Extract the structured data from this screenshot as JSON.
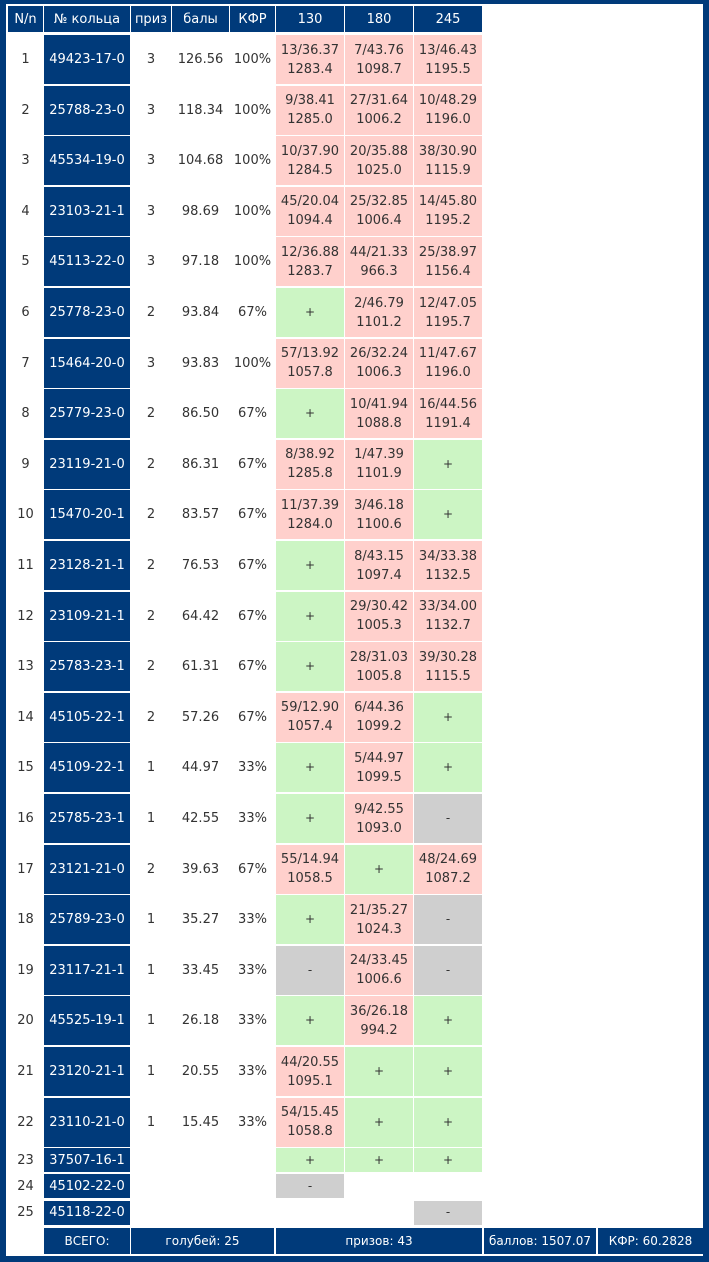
{
  "headers": {
    "n": "N/n",
    "ring": "№ кольца",
    "prize": "приз",
    "points": "балы",
    "kfr": "КФР",
    "d1": "130",
    "d2": "180",
    "d3": "245"
  },
  "rows": [
    {
      "n": "1",
      "ring": "49423-17-0",
      "prize": "3",
      "points": "126.56",
      "kfr": "100%",
      "results": [
        {
          "s": "r",
          "l1": "13/36.37",
          "l2": "1283.4"
        },
        {
          "s": "r",
          "l1": "7/43.76",
          "l2": "1098.7"
        },
        {
          "s": "r",
          "l1": "13/46.43",
          "l2": "1195.5"
        }
      ]
    },
    {
      "n": "2",
      "ring": "25788-23-0",
      "prize": "3",
      "points": "118.34",
      "kfr": "100%",
      "results": [
        {
          "s": "r",
          "l1": "9/38.41",
          "l2": "1285.0"
        },
        {
          "s": "r",
          "l1": "27/31.64",
          "l2": "1006.2"
        },
        {
          "s": "r",
          "l1": "10/48.29",
          "l2": "1196.0"
        }
      ]
    },
    {
      "n": "3",
      "ring": "45534-19-0",
      "prize": "3",
      "points": "104.68",
      "kfr": "100%",
      "results": [
        {
          "s": "r",
          "l1": "10/37.90",
          "l2": "1284.5"
        },
        {
          "s": "r",
          "l1": "20/35.88",
          "l2": "1025.0"
        },
        {
          "s": "r",
          "l1": "38/30.90",
          "l2": "1115.9"
        }
      ]
    },
    {
      "n": "4",
      "ring": "23103-21-1",
      "prize": "3",
      "points": "98.69",
      "kfr": "100%",
      "results": [
        {
          "s": "r",
          "l1": "45/20.04",
          "l2": "1094.4"
        },
        {
          "s": "r",
          "l1": "25/32.85",
          "l2": "1006.4"
        },
        {
          "s": "r",
          "l1": "14/45.80",
          "l2": "1195.2"
        }
      ]
    },
    {
      "n": "5",
      "ring": "45113-22-0",
      "prize": "3",
      "points": "97.18",
      "kfr": "100%",
      "results": [
        {
          "s": "r",
          "l1": "12/36.88",
          "l2": "1283.7"
        },
        {
          "s": "r",
          "l1": "44/21.33",
          "l2": "966.3"
        },
        {
          "s": "r",
          "l1": "25/38.97",
          "l2": "1156.4"
        }
      ]
    },
    {
      "n": "6",
      "ring": "25778-23-0",
      "prize": "2",
      "points": "93.84",
      "kfr": "67%",
      "results": [
        {
          "s": "g",
          "l1": "+",
          "l2": ""
        },
        {
          "s": "r",
          "l1": "2/46.79",
          "l2": "1101.2"
        },
        {
          "s": "r",
          "l1": "12/47.05",
          "l2": "1195.7"
        }
      ]
    },
    {
      "n": "7",
      "ring": "15464-20-0",
      "prize": "3",
      "points": "93.83",
      "kfr": "100%",
      "results": [
        {
          "s": "r",
          "l1": "57/13.92",
          "l2": "1057.8"
        },
        {
          "s": "r",
          "l1": "26/32.24",
          "l2": "1006.3"
        },
        {
          "s": "r",
          "l1": "11/47.67",
          "l2": "1196.0"
        }
      ]
    },
    {
      "n": "8",
      "ring": "25779-23-0",
      "prize": "2",
      "points": "86.50",
      "kfr": "67%",
      "results": [
        {
          "s": "g",
          "l1": "+",
          "l2": ""
        },
        {
          "s": "r",
          "l1": "10/41.94",
          "l2": "1088.8"
        },
        {
          "s": "r",
          "l1": "16/44.56",
          "l2": "1191.4"
        }
      ]
    },
    {
      "n": "9",
      "ring": "23119-21-0",
      "prize": "2",
      "points": "86.31",
      "kfr": "67%",
      "results": [
        {
          "s": "r",
          "l1": "8/38.92",
          "l2": "1285.8"
        },
        {
          "s": "r",
          "l1": "1/47.39",
          "l2": "1101.9"
        },
        {
          "s": "g",
          "l1": "+",
          "l2": ""
        }
      ]
    },
    {
      "n": "10",
      "ring": "15470-20-1",
      "prize": "2",
      "points": "83.57",
      "kfr": "67%",
      "results": [
        {
          "s": "r",
          "l1": "11/37.39",
          "l2": "1284.0"
        },
        {
          "s": "r",
          "l1": "3/46.18",
          "l2": "1100.6"
        },
        {
          "s": "g",
          "l1": "+",
          "l2": ""
        }
      ]
    },
    {
      "n": "11",
      "ring": "23128-21-1",
      "prize": "2",
      "points": "76.53",
      "kfr": "67%",
      "results": [
        {
          "s": "g",
          "l1": "+",
          "l2": ""
        },
        {
          "s": "r",
          "l1": "8/43.15",
          "l2": "1097.4"
        },
        {
          "s": "r",
          "l1": "34/33.38",
          "l2": "1132.5"
        }
      ]
    },
    {
      "n": "12",
      "ring": "23109-21-1",
      "prize": "2",
      "points": "64.42",
      "kfr": "67%",
      "results": [
        {
          "s": "g",
          "l1": "+",
          "l2": ""
        },
        {
          "s": "r",
          "l1": "29/30.42",
          "l2": "1005.3"
        },
        {
          "s": "r",
          "l1": "33/34.00",
          "l2": "1132.7"
        }
      ]
    },
    {
      "n": "13",
      "ring": "25783-23-1",
      "prize": "2",
      "points": "61.31",
      "kfr": "67%",
      "results": [
        {
          "s": "g",
          "l1": "+",
          "l2": ""
        },
        {
          "s": "r",
          "l1": "28/31.03",
          "l2": "1005.8"
        },
        {
          "s": "r",
          "l1": "39/30.28",
          "l2": "1115.5"
        }
      ]
    },
    {
      "n": "14",
      "ring": "45105-22-1",
      "prize": "2",
      "points": "57.26",
      "kfr": "67%",
      "results": [
        {
          "s": "r",
          "l1": "59/12.90",
          "l2": "1057.4"
        },
        {
          "s": "r",
          "l1": "6/44.36",
          "l2": "1099.2"
        },
        {
          "s": "g",
          "l1": "+",
          "l2": ""
        }
      ]
    },
    {
      "n": "15",
      "ring": "45109-22-1",
      "prize": "1",
      "points": "44.97",
      "kfr": "33%",
      "results": [
        {
          "s": "g",
          "l1": "+",
          "l2": ""
        },
        {
          "s": "r",
          "l1": "5/44.97",
          "l2": "1099.5"
        },
        {
          "s": "g",
          "l1": "+",
          "l2": ""
        }
      ]
    },
    {
      "n": "16",
      "ring": "25785-23-1",
      "prize": "1",
      "points": "42.55",
      "kfr": "33%",
      "results": [
        {
          "s": "g",
          "l1": "+",
          "l2": ""
        },
        {
          "s": "r",
          "l1": "9/42.55",
          "l2": "1093.0"
        },
        {
          "s": "x",
          "l1": "-",
          "l2": ""
        }
      ]
    },
    {
      "n": "17",
      "ring": "23121-21-0",
      "prize": "2",
      "points": "39.63",
      "kfr": "67%",
      "results": [
        {
          "s": "r",
          "l1": "55/14.94",
          "l2": "1058.5"
        },
        {
          "s": "g",
          "l1": "+",
          "l2": ""
        },
        {
          "s": "r",
          "l1": "48/24.69",
          "l2": "1087.2"
        }
      ]
    },
    {
      "n": "18",
      "ring": "25789-23-0",
      "prize": "1",
      "points": "35.27",
      "kfr": "33%",
      "results": [
        {
          "s": "g",
          "l1": "+",
          "l2": ""
        },
        {
          "s": "r",
          "l1": "21/35.27",
          "l2": "1024.3"
        },
        {
          "s": "x",
          "l1": "-",
          "l2": ""
        }
      ]
    },
    {
      "n": "19",
      "ring": "23117-21-1",
      "prize": "1",
      "points": "33.45",
      "kfr": "33%",
      "results": [
        {
          "s": "x",
          "l1": "-",
          "l2": ""
        },
        {
          "s": "r",
          "l1": "24/33.45",
          "l2": "1006.6"
        },
        {
          "s": "x",
          "l1": "-",
          "l2": ""
        }
      ]
    },
    {
      "n": "20",
      "ring": "45525-19-1",
      "prize": "1",
      "points": "26.18",
      "kfr": "33%",
      "results": [
        {
          "s": "g",
          "l1": "+",
          "l2": ""
        },
        {
          "s": "r",
          "l1": "36/26.18",
          "l2": "994.2"
        },
        {
          "s": "g",
          "l1": "+",
          "l2": ""
        }
      ]
    },
    {
      "n": "21",
      "ring": "23120-21-1",
      "prize": "1",
      "points": "20.55",
      "kfr": "33%",
      "results": [
        {
          "s": "r",
          "l1": "44/20.55",
          "l2": "1095.1"
        },
        {
          "s": "g",
          "l1": "+",
          "l2": ""
        },
        {
          "s": "g",
          "l1": "+",
          "l2": ""
        }
      ]
    },
    {
      "n": "22",
      "ring": "23110-21-0",
      "prize": "1",
      "points": "15.45",
      "kfr": "33%",
      "results": [
        {
          "s": "r",
          "l1": "54/15.45",
          "l2": "1058.8"
        },
        {
          "s": "g",
          "l1": "+",
          "l2": ""
        },
        {
          "s": "g",
          "l1": "+",
          "l2": ""
        }
      ]
    },
    {
      "n": "23",
      "ring": "37507-16-1",
      "prize": "",
      "points": "",
      "kfr": "",
      "results": [
        {
          "s": "g",
          "l1": "+",
          "l2": ""
        },
        {
          "s": "g",
          "l1": "+",
          "l2": ""
        },
        {
          "s": "g",
          "l1": "+",
          "l2": ""
        }
      ]
    },
    {
      "n": "24",
      "ring": "45102-22-0",
      "prize": "",
      "points": "",
      "kfr": "",
      "results": [
        {
          "s": "x",
          "l1": "-",
          "l2": ""
        },
        {
          "s": "e",
          "l1": "",
          "l2": ""
        },
        {
          "s": "e",
          "l1": "",
          "l2": ""
        }
      ]
    },
    {
      "n": "25",
      "ring": "45118-22-0",
      "prize": "",
      "points": "",
      "kfr": "",
      "results": [
        {
          "s": "e",
          "l1": "",
          "l2": ""
        },
        {
          "s": "e",
          "l1": "",
          "l2": ""
        },
        {
          "s": "x",
          "l1": "-",
          "l2": ""
        }
      ]
    }
  ],
  "footer": {
    "total": "ВСЕГО:",
    "pigeons": "голубей: 25",
    "prizes": "призов: 43",
    "points": "баллов: 1507.07",
    "kfr": "КФР: 60.2828"
  },
  "colors": {
    "header_bg": "#003a7a",
    "result_red": "#ffd0cc",
    "result_green": "#ccf5c4",
    "result_gray": "#cfcfcf"
  }
}
